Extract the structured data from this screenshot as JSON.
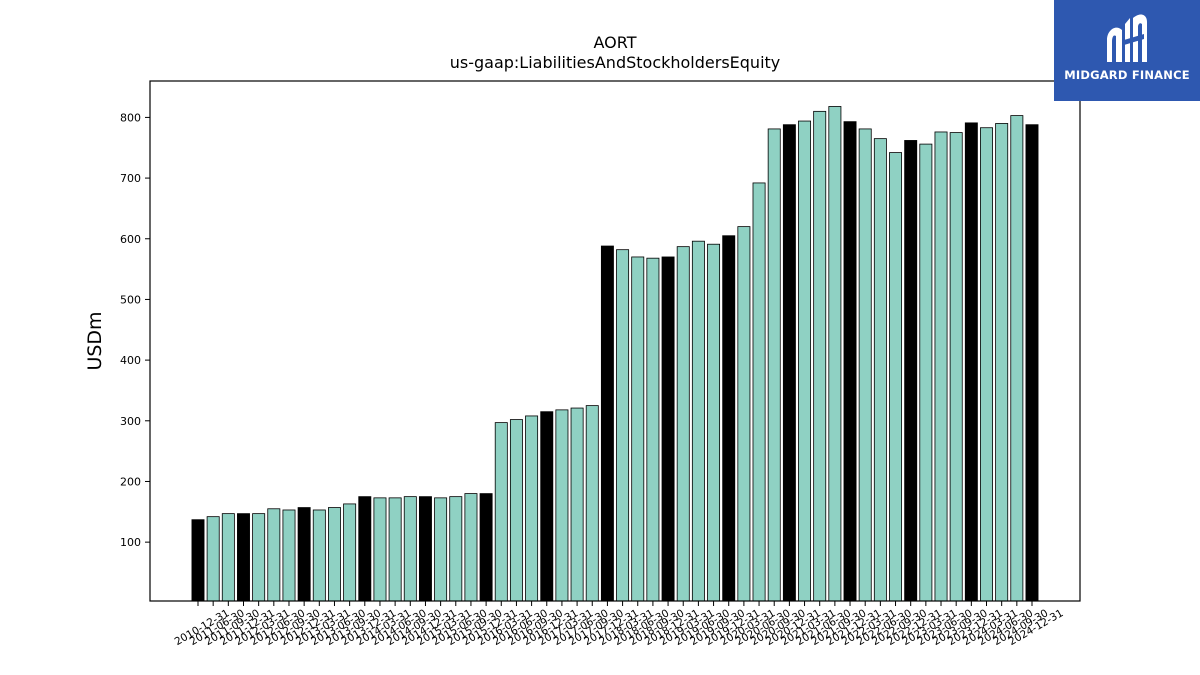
{
  "chart_data": {
    "type": "bar",
    "title": "AORT",
    "subtitle": "us-gaap:LiabilitiesAndStockholdersEquity",
    "xlabel": "",
    "ylabel": "USDm",
    "ylim": [
      3,
      860
    ],
    "yticks": [
      100,
      200,
      300,
      400,
      500,
      600,
      700,
      800
    ],
    "grid": false,
    "colors": {
      "quarter": "#8fd1c3",
      "year_end": "#000000",
      "edge": "#000000"
    },
    "categories": [
      "2010-12-31",
      "2011-06-30",
      "2011-09-30",
      "2011-12-31",
      "2012-03-31",
      "2012-06-30",
      "2012-09-30",
      "2012-12-31",
      "2013-03-31",
      "2013-06-30",
      "2013-09-30",
      "2013-12-31",
      "2014-03-31",
      "2014-06-30",
      "2014-09-30",
      "2014-12-31",
      "2015-03-31",
      "2015-06-30",
      "2015-09-30",
      "2015-12-31",
      "2016-03-31",
      "2016-06-30",
      "2016-09-30",
      "2016-12-31",
      "2017-03-31",
      "2017-06-30",
      "2017-09-30",
      "2017-12-31",
      "2018-03-31",
      "2018-06-30",
      "2018-09-30",
      "2018-12-31",
      "2019-03-31",
      "2019-06-30",
      "2019-09-30",
      "2019-12-31",
      "2020-03-31",
      "2020-06-30",
      "2020-09-30",
      "2020-12-31",
      "2021-03-31",
      "2021-06-30",
      "2021-09-30",
      "2021-12-31",
      "2022-03-31",
      "2022-06-30",
      "2022-09-30",
      "2022-12-31",
      "2023-03-31",
      "2023-06-30",
      "2023-09-30",
      "2023-12-31",
      "2024-03-31",
      "2024-06-30",
      "2024-09-30",
      "2024-12-31"
    ],
    "values": [
      137,
      142,
      147,
      147,
      147,
      155,
      153,
      157,
      153,
      157,
      163,
      175,
      173,
      173,
      175,
      175,
      173,
      175,
      180,
      180,
      297,
      302,
      308,
      315,
      318,
      321,
      325,
      588,
      582,
      570,
      568,
      570,
      587,
      596,
      591,
      605,
      620,
      692,
      781,
      788,
      794,
      810,
      818,
      793,
      781,
      765,
      742,
      762,
      756,
      776,
      775,
      791,
      783,
      790,
      803,
      788
    ]
  },
  "logo": {
    "text": "MIDGARD FINANCE"
  }
}
